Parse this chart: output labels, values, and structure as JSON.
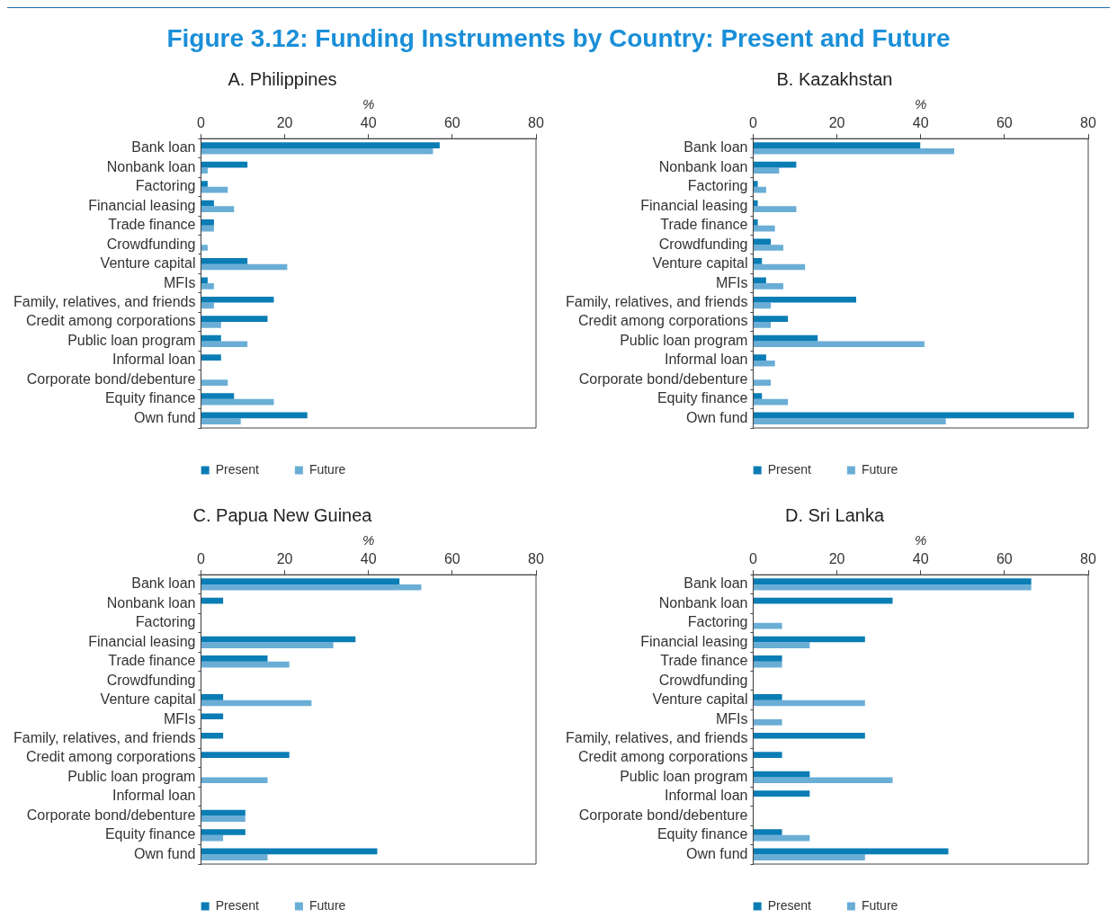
{
  "chart_data": [
    {
      "type": "bar",
      "orientation": "horizontal",
      "title": "Figure 3.12: Funding Instruments by Country: Present and Future",
      "subtitle": "A. Philippines",
      "xlabel": "%",
      "xlim": [
        0,
        80
      ],
      "xticks": [
        0,
        20,
        40,
        60,
        80
      ],
      "legend": "bottom",
      "categories": [
        "Bank loan",
        "Nonbank loan",
        "Factoring",
        "Financial leasing",
        "Trade finance",
        "Crowdfunding",
        "Venture capital",
        "MFIs",
        "Family, relatives, and friends",
        "Credit among corporations",
        "Public loan program",
        "Informal loan",
        "Corporate bond/debenture",
        "Equity finance",
        "Own fund"
      ],
      "series": [
        {
          "name": "Present",
          "color": "#0a7db5",
          "values": [
            57.0,
            11.1,
            1.6,
            3.1,
            3.1,
            0,
            11.1,
            1.6,
            17.4,
            15.9,
            4.8,
            4.8,
            0,
            7.9,
            25.4
          ]
        },
        {
          "name": "Future",
          "color": "#6aaed6",
          "values": [
            55.4,
            1.6,
            6.4,
            7.9,
            3.1,
            1.6,
            20.6,
            3.1,
            3.1,
            4.8,
            11.1,
            0,
            6.4,
            17.4,
            9.5
          ]
        }
      ]
    },
    {
      "type": "bar",
      "orientation": "horizontal",
      "subtitle": "B. Kazakhstan",
      "xlabel": "%",
      "xlim": [
        0,
        80
      ],
      "xticks": [
        0,
        20,
        40,
        60,
        80
      ],
      "legend": "bottom",
      "categories": [
        "Bank loan",
        "Nonbank loan",
        "Factoring",
        "Financial leasing",
        "Trade finance",
        "Crowdfunding",
        "Venture capital",
        "MFIs",
        "Family, relatives, and friends",
        "Credit among corporations",
        "Public loan program",
        "Informal loan",
        "Corporate bond/debenture",
        "Equity finance",
        "Own fund"
      ],
      "series": [
        {
          "name": "Present",
          "color": "#0a7db5",
          "values": [
            39.9,
            10.3,
            1.1,
            1.1,
            1.1,
            4.2,
            2.1,
            3.1,
            24.6,
            8.3,
            15.4,
            3.1,
            0,
            2.1,
            76.6
          ]
        },
        {
          "name": "Future",
          "color": "#6aaed6",
          "values": [
            48.0,
            6.2,
            3.1,
            10.3,
            5.2,
            7.2,
            12.4,
            7.2,
            4.2,
            4.2,
            40.9,
            5.2,
            4.2,
            8.3,
            46.0
          ]
        }
      ]
    },
    {
      "type": "bar",
      "orientation": "horizontal",
      "subtitle": "C. Papua New Guinea",
      "xlabel": "%",
      "xlim": [
        0,
        80
      ],
      "xticks": [
        0,
        20,
        40,
        60,
        80
      ],
      "legend": "bottom",
      "categories": [
        "Bank loan",
        "Nonbank loan",
        "Factoring",
        "Financial leasing",
        "Trade finance",
        "Crowdfunding",
        "Venture capital",
        "MFIs",
        "Family, relatives, and friends",
        "Credit among corporations",
        "Public loan program",
        "Informal loan",
        "Corporate bond/debenture",
        "Equity finance",
        "Own fund"
      ],
      "series": [
        {
          "name": "Present",
          "color": "#0a7db5",
          "values": [
            47.4,
            5.3,
            0,
            36.9,
            15.9,
            0,
            5.3,
            5.3,
            5.3,
            21.1,
            0,
            0,
            10.6,
            10.6,
            42.1
          ]
        },
        {
          "name": "Future",
          "color": "#6aaed6",
          "values": [
            52.6,
            0,
            0,
            31.6,
            21.1,
            0,
            26.4,
            0,
            0,
            0,
            15.9,
            0,
            10.6,
            5.3,
            15.9
          ]
        }
      ]
    },
    {
      "type": "bar",
      "orientation": "horizontal",
      "subtitle": "D. Sri Lanka",
      "xlabel": "%",
      "xlim": [
        0,
        80
      ],
      "xticks": [
        0,
        20,
        40,
        60,
        80
      ],
      "legend": "bottom",
      "categories": [
        "Bank loan",
        "Nonbank loan",
        "Factoring",
        "Financial leasing",
        "Trade finance",
        "Crowdfunding",
        "Venture capital",
        "MFIs",
        "Family, relatives, and friends",
        "Credit among corporations",
        "Public loan program",
        "Informal loan",
        "Corporate bond/debenture",
        "Equity finance",
        "Own fund"
      ],
      "series": [
        {
          "name": "Present",
          "color": "#0a7db5",
          "values": [
            66.4,
            33.3,
            0,
            26.7,
            6.9,
            0,
            6.9,
            0,
            26.7,
            6.9,
            13.5,
            13.5,
            0,
            6.9,
            46.6
          ]
        },
        {
          "name": "Future",
          "color": "#6aaed6",
          "values": [
            66.4,
            0,
            6.9,
            13.5,
            6.9,
            0,
            26.7,
            6.9,
            0,
            0,
            33.3,
            0,
            0,
            13.5,
            26.7
          ]
        }
      ]
    }
  ]
}
